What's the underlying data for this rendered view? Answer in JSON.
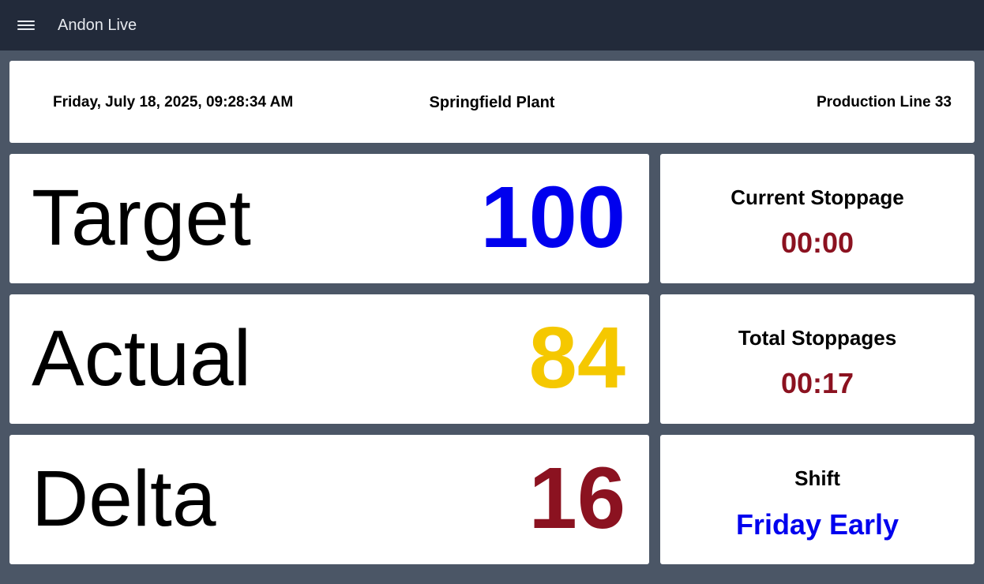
{
  "appbar": {
    "title": "Andon Live",
    "menu_icon": "hamburger-menu-icon"
  },
  "info": {
    "datetime": "Friday, July 18, 2025, 09:28:34 AM",
    "plant": "Springfield Plant",
    "line": "Production Line 33"
  },
  "metrics": {
    "target": {
      "label": "Target",
      "value": "100",
      "color": "#0000ee"
    },
    "actual": {
      "label": "Actual",
      "value": "84",
      "color": "#f5c800"
    },
    "delta": {
      "label": "Delta",
      "value": "16",
      "color": "#8b1220"
    }
  },
  "side": {
    "current_stoppage": {
      "label": "Current Stoppage",
      "value": "00:00",
      "color": "#8b1220"
    },
    "total_stoppages": {
      "label": "Total Stoppages",
      "value": "00:17",
      "color": "#8b1220"
    },
    "shift": {
      "label": "Shift",
      "value": "Friday Early",
      "color": "#0000ee"
    }
  }
}
